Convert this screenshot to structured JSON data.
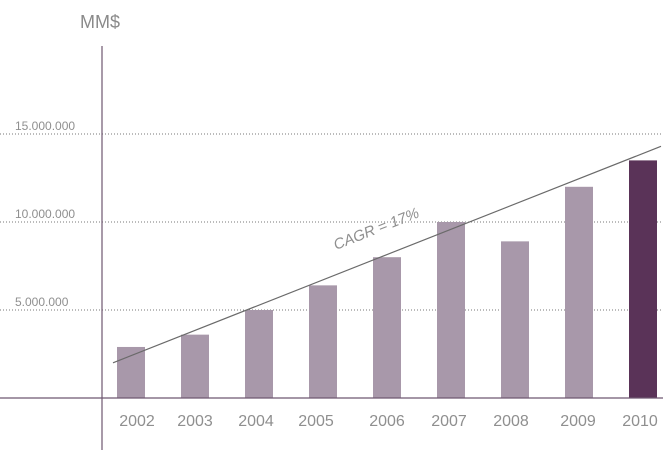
{
  "chart_data": {
    "type": "bar",
    "title": "",
    "xlabel": "",
    "ylabel": "MM$",
    "ylim": [
      0,
      17000000
    ],
    "yticks": [
      5000000,
      10000000,
      15000000
    ],
    "ytick_labels": [
      "5.000.000",
      "10.000.000",
      "15.000.000"
    ],
    "grid": "dotted horizontal at ticks",
    "categories": [
      "2002",
      "2003",
      "2004",
      "2005",
      "2006",
      "2007",
      "2008",
      "2009",
      "2010"
    ],
    "values": [
      2900000,
      3600000,
      5000000,
      6400000,
      8000000,
      10000000,
      8900000,
      12000000,
      13500000
    ],
    "colors": {
      "bar": "#a898aa",
      "highlight_bar": "#5a3358",
      "axis": "#6e5770",
      "gridline": "#777777",
      "trend": "#6a6a6a",
      "text": "#8f8f8f"
    },
    "highlight_category": "2010",
    "trendline": {
      "label": "CAGR = 17%",
      "start": {
        "x": "2002",
        "y": 2000000
      },
      "end": {
        "x": "2010",
        "y": 14300000
      }
    }
  }
}
